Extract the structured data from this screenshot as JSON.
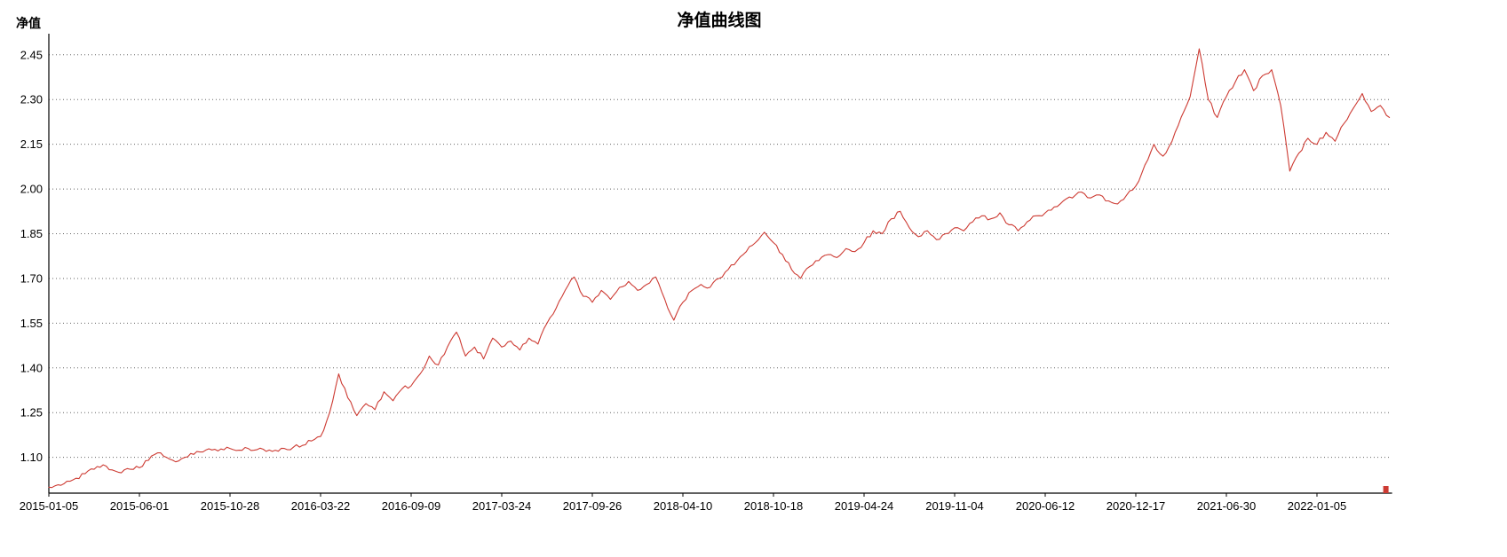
{
  "page": {
    "background": "#ffffff",
    "text_color": "#000000"
  },
  "chart_data": {
    "type": "line",
    "title": "净值曲线图",
    "ylabel": "净值",
    "series_name": "净值",
    "line_color": "#cd3b33",
    "grid": "horizontal-dotted",
    "grid_color": "#666666",
    "axis_color": "#000000",
    "legend": "none",
    "ylim": [
      0.98,
      2.5
    ],
    "y_ticks": [
      2.45,
      2.3,
      2.15,
      2.0,
      1.85,
      1.7,
      1.55,
      1.4,
      1.25,
      1.1
    ],
    "x_tick_labels": [
      "2015-01-05",
      "2015-06-01",
      "2015-10-28",
      "2016-03-22",
      "2016-09-09",
      "2017-03-24",
      "2017-09-26",
      "2018-04-10",
      "2018-10-18",
      "2019-04-24",
      "2019-11-04",
      "2020-06-12",
      "2020-12-17",
      "2021-06-30",
      "2022-01-05"
    ],
    "points_per_tick": 10,
    "values": [
      1.0,
      1.008,
      1.02,
      1.03,
      1.045,
      1.06,
      1.075,
      1.058,
      1.048,
      1.06,
      1.065,
      1.09,
      1.115,
      1.1,
      1.085,
      1.1,
      1.11,
      1.118,
      1.125,
      1.128,
      1.13,
      1.124,
      1.13,
      1.126,
      1.12,
      1.124,
      1.13,
      1.134,
      1.14,
      1.155,
      1.17,
      1.25,
      1.38,
      1.3,
      1.24,
      1.28,
      1.26,
      1.32,
      1.29,
      1.33,
      1.34,
      1.38,
      1.44,
      1.41,
      1.47,
      1.52,
      1.44,
      1.47,
      1.43,
      1.5,
      1.47,
      1.49,
      1.46,
      1.5,
      1.48,
      1.55,
      1.6,
      1.66,
      1.705,
      1.64,
      1.62,
      1.66,
      1.63,
      1.67,
      1.69,
      1.66,
      1.68,
      1.705,
      1.63,
      1.56,
      1.62,
      1.66,
      1.68,
      1.67,
      1.7,
      1.73,
      1.76,
      1.79,
      1.82,
      1.855,
      1.82,
      1.78,
      1.73,
      1.7,
      1.74,
      1.76,
      1.78,
      1.77,
      1.8,
      1.79,
      1.82,
      1.86,
      1.85,
      1.9,
      1.925,
      1.87,
      1.84,
      1.86,
      1.83,
      1.85,
      1.87,
      1.86,
      1.89,
      1.91,
      1.9,
      1.92,
      1.88,
      1.86,
      1.89,
      1.91,
      1.92,
      1.94,
      1.96,
      1.97,
      1.99,
      1.97,
      1.98,
      1.96,
      1.95,
      1.98,
      2.01,
      2.08,
      2.15,
      2.11,
      2.16,
      2.24,
      2.31,
      2.47,
      2.3,
      2.24,
      2.31,
      2.36,
      2.4,
      2.33,
      2.38,
      2.4,
      2.28,
      2.06,
      2.12,
      2.17,
      2.15,
      2.19,
      2.16,
      2.22,
      2.27,
      2.32,
      2.26,
      2.28,
      2.24
    ]
  }
}
